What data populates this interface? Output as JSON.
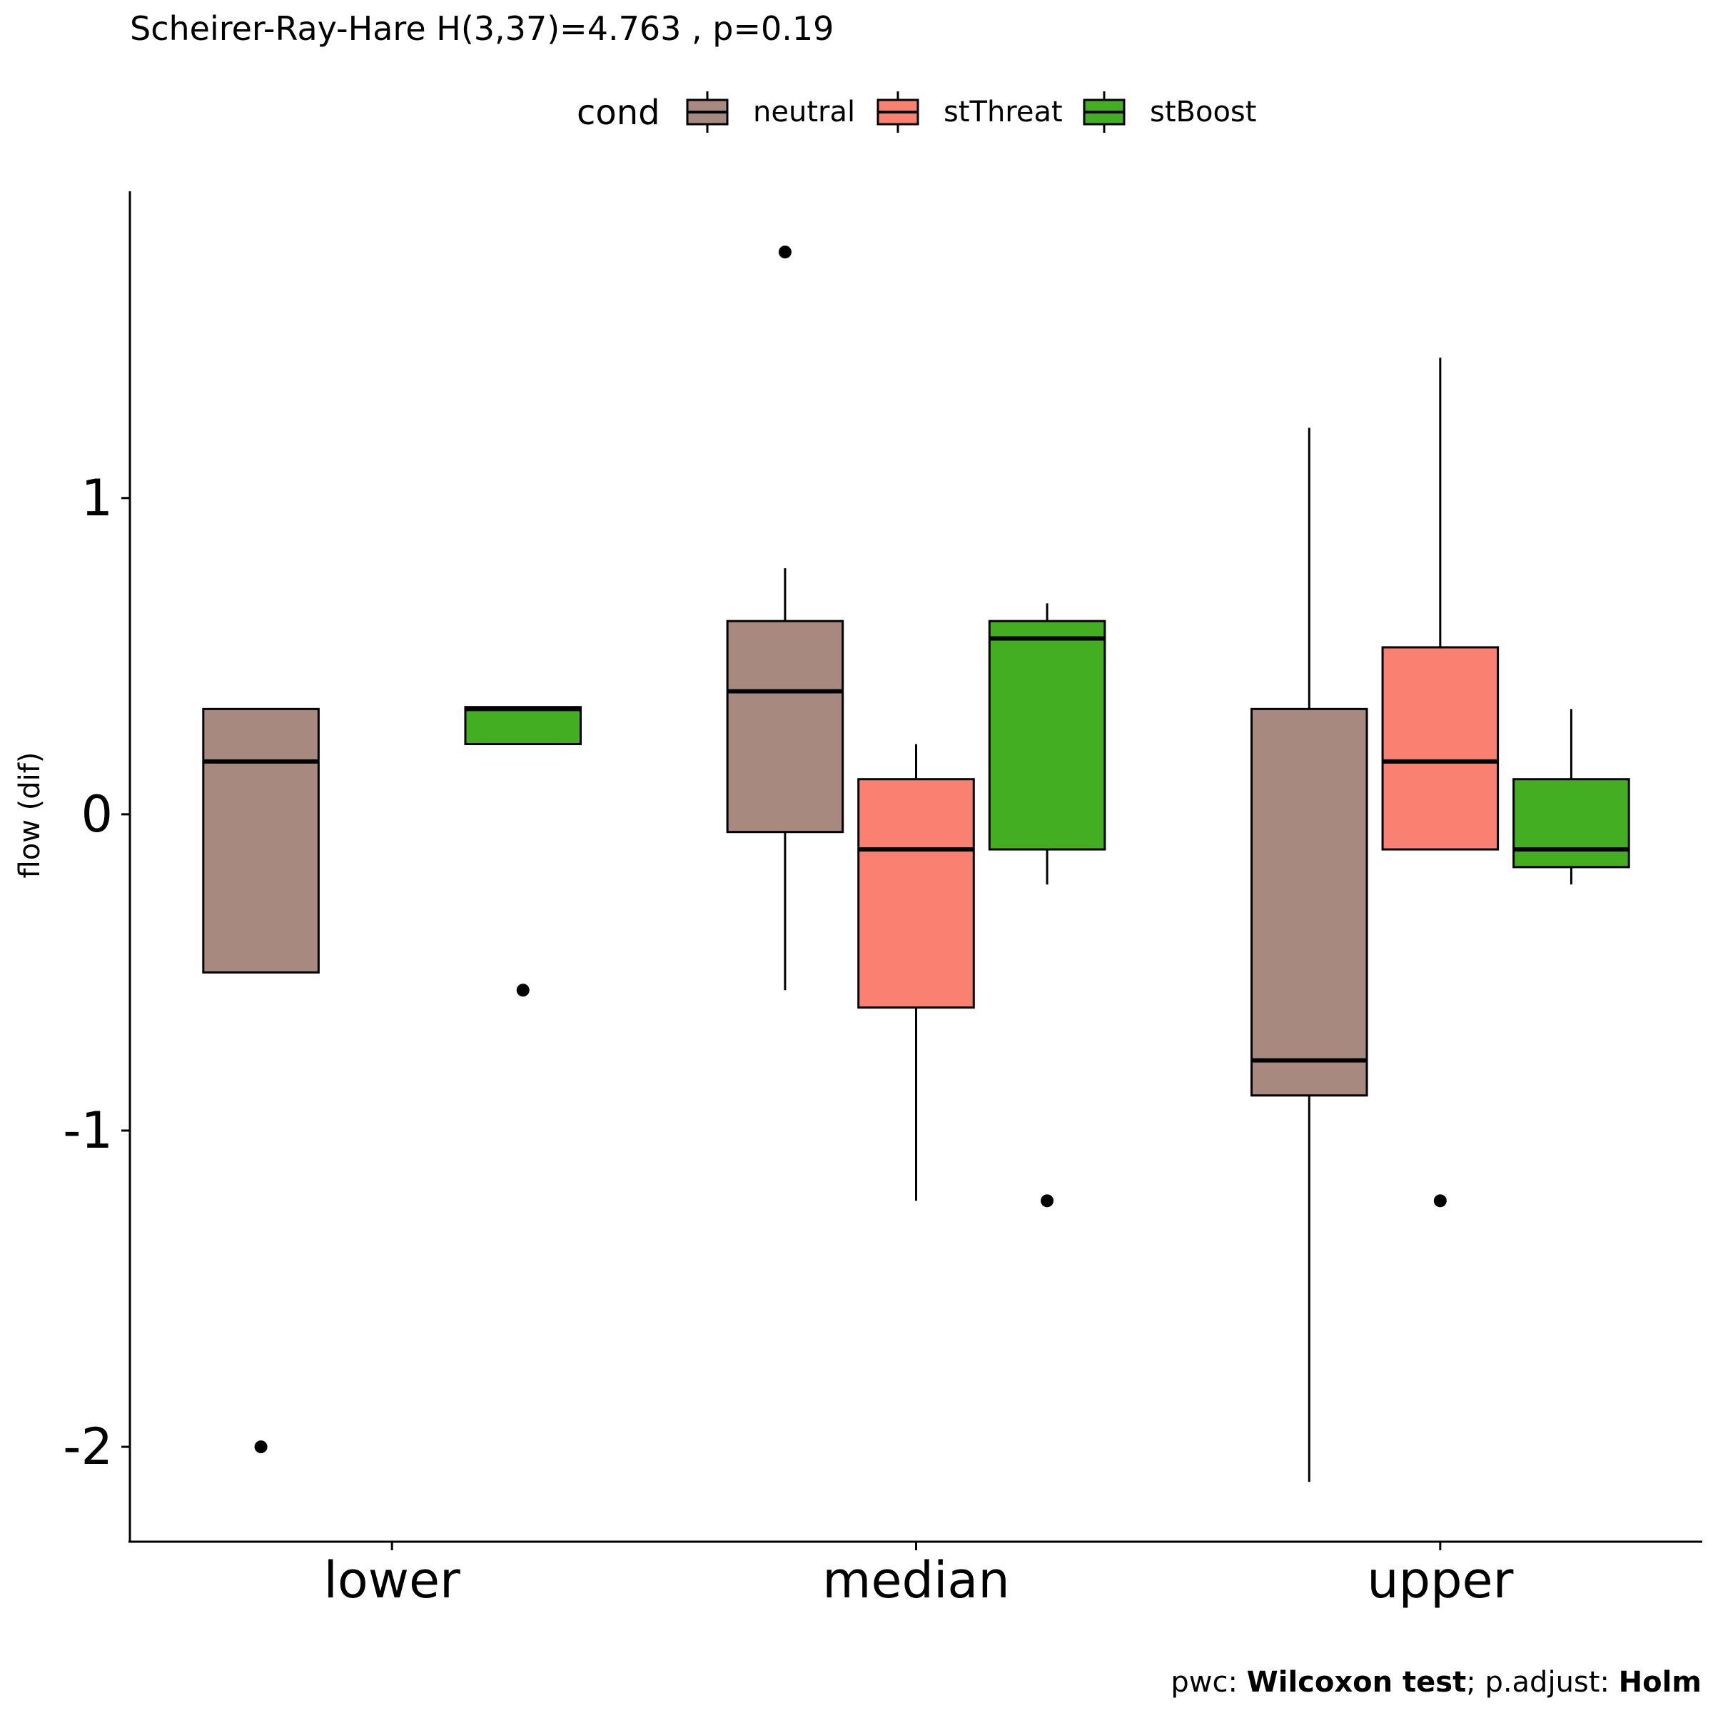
{
  "chart_data": {
    "type": "boxplot",
    "title": "Scheirer-Ray-Hare H(3,37)=4.763 , p=0.19",
    "ylabel": "flow (dif)",
    "xlabel": "",
    "ylim": [
      -2.3,
      1.97
    ],
    "y_ticks": [
      -2,
      -1,
      0,
      1
    ],
    "y_tick_labels": [
      "-2",
      "-1",
      "0",
      "1"
    ],
    "grid": false,
    "legend": {
      "title": "cond",
      "position": "top"
    },
    "categories": [
      "lower",
      "median",
      "upper"
    ],
    "series": [
      {
        "name": "neutral",
        "color": "#A88980",
        "boxes": [
          {
            "category": "lower",
            "q1": -0.5,
            "median": 0.167,
            "q3": 0.333,
            "whisker_low": -0.5,
            "whisker_high": 0.333,
            "outliers": [
              -2.0
            ]
          },
          {
            "category": "median",
            "q1": -0.056,
            "median": 0.389,
            "q3": 0.611,
            "whisker_low": -0.556,
            "whisker_high": 0.778,
            "outliers": [
              1.778
            ]
          },
          {
            "category": "upper",
            "q1": -0.889,
            "median": -0.778,
            "q3": 0.333,
            "whisker_low": -2.111,
            "whisker_high": 1.222,
            "outliers": []
          }
        ]
      },
      {
        "name": "stThreat",
        "color": "#FA8072",
        "boxes": [
          {
            "category": "median",
            "q1": -0.611,
            "median": -0.111,
            "q3": 0.111,
            "whisker_low": -1.222,
            "whisker_high": 0.222,
            "outliers": []
          },
          {
            "category": "upper",
            "q1": -0.111,
            "median": 0.167,
            "q3": 0.528,
            "whisker_low": -0.111,
            "whisker_high": 1.444,
            "outliers": [
              -1.222
            ]
          }
        ]
      },
      {
        "name": "stBoost",
        "color": "#43AE22",
        "boxes": [
          {
            "category": "lower",
            "q1": 0.222,
            "median": 0.333,
            "q3": 0.339,
            "whisker_low": 0.222,
            "whisker_high": 0.339,
            "outliers": [
              -0.556
            ]
          },
          {
            "category": "median",
            "q1": -0.111,
            "median": 0.556,
            "q3": 0.611,
            "whisker_low": -0.222,
            "whisker_high": 0.667,
            "outliers": [
              -1.222
            ]
          },
          {
            "category": "upper",
            "q1": -0.167,
            "median": -0.111,
            "q3": 0.111,
            "whisker_low": -0.222,
            "whisker_high": 0.333,
            "outliers": []
          }
        ]
      }
    ],
    "caption": {
      "prefix": "pwc: ",
      "test": "Wilcoxon test",
      "mid": "; p.adjust: ",
      "method": "Holm"
    }
  }
}
